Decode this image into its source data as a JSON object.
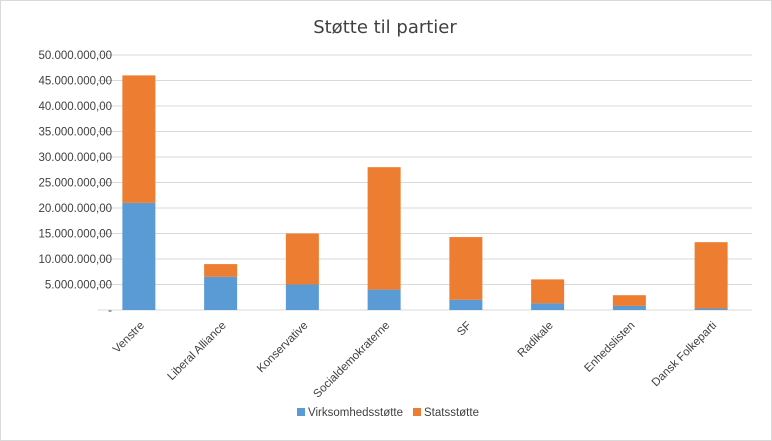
{
  "chart_data": {
    "type": "bar",
    "stacked": true,
    "title": "Støtte til partier",
    "categories": [
      "Venstre",
      "Liberal Alliance",
      "Konservative",
      "Socialdemokraterne",
      "SF",
      "Radikale",
      "Enhedslisten",
      "Dansk Folkeparti"
    ],
    "series": [
      {
        "name": "Virksomhedsstøtte",
        "color": "#5b9bd5",
        "values": [
          21000000,
          6500000,
          5000000,
          4000000,
          2000000,
          1300000,
          800000,
          300000
        ]
      },
      {
        "name": "Statsstøtte",
        "color": "#ed7d31",
        "values": [
          25000000,
          2500000,
          10000000,
          24000000,
          12300000,
          4700000,
          2100000,
          13000000
        ]
      }
    ],
    "ylim": [
      0,
      50000000
    ],
    "yticks": [
      "-",
      "5.000.000,00",
      "10.000.000,00",
      "15.000.000,00",
      "20.000.000,00",
      "25.000.000,00",
      "30.000.000,00",
      "35.000.000,00",
      "40.000.000,00",
      "45.000.000,00",
      "50.000.000,00"
    ],
    "xlabel": "",
    "ylabel": "",
    "grid": true,
    "legend_position": "bottom"
  }
}
